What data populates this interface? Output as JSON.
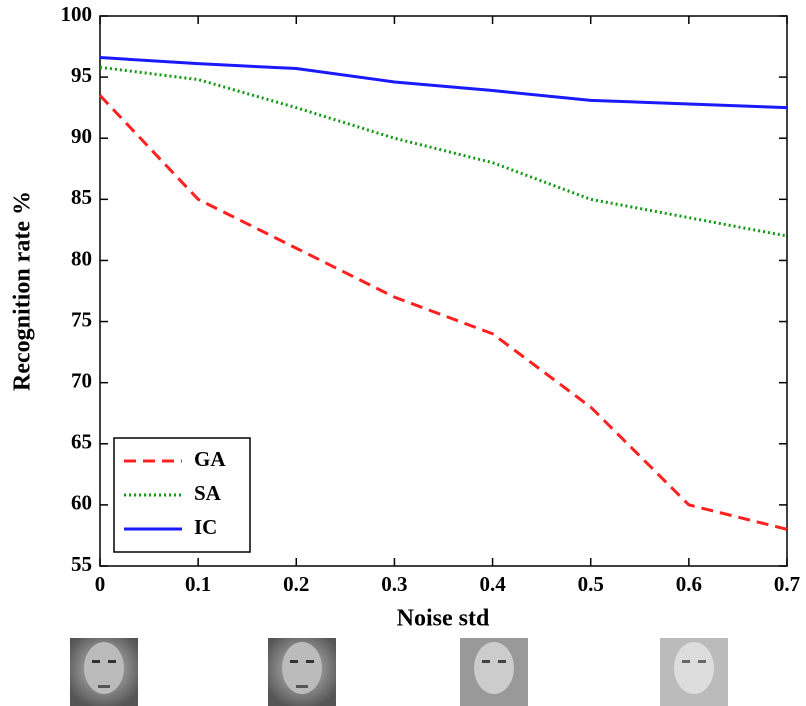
{
  "chart_data": {
    "type": "line",
    "xlabel": "Noise std",
    "ylabel": "Recognition rate %",
    "x": [
      0,
      0.1,
      0.2,
      0.3,
      0.4,
      0.5,
      0.6,
      0.7
    ],
    "series": [
      {
        "name": "GA",
        "color": "#ff2020",
        "dash": "12,7",
        "values": [
          93.5,
          85,
          81,
          77,
          74,
          68,
          60,
          58
        ]
      },
      {
        "name": "SA",
        "color": "#119911",
        "dash": "2,3",
        "values": [
          95.8,
          94.8,
          92.5,
          90,
          88,
          85,
          83.5,
          82
        ]
      },
      {
        "name": "IC",
        "color": "#1a1aff",
        "dash": "none",
        "values": [
          96.6,
          96.1,
          95.7,
          94.6,
          93.9,
          93.1,
          92.8,
          92.5
        ]
      }
    ],
    "xlim": [
      0,
      0.7
    ],
    "xticks": [
      0,
      0.1,
      0.2,
      0.3,
      0.4,
      0.5,
      0.6,
      0.7
    ],
    "ylim": [
      55,
      100
    ],
    "yticks": [
      55,
      60,
      65,
      70,
      75,
      80,
      85,
      90,
      95,
      100
    ],
    "legend": "lower left"
  }
}
